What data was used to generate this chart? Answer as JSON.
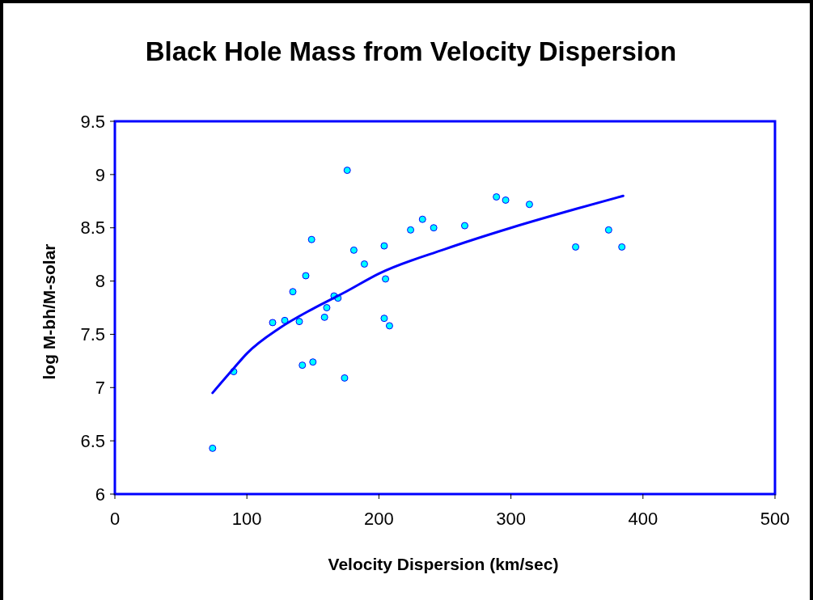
{
  "chart_data": {
    "type": "scatter",
    "title": "Black Hole Mass from Velocity Dispersion",
    "xlabel": "Velocity Dispersion (km/sec)",
    "ylabel": "log M-bh/M-solar",
    "xlim": [
      0,
      500
    ],
    "xticks": [
      0,
      100,
      200,
      300,
      400,
      500
    ],
    "ylim": [
      6,
      9.5
    ],
    "yticks": [
      6,
      6.5,
      7,
      7.5,
      8,
      8.5,
      9,
      9.5
    ],
    "grid": false,
    "series": [
      {
        "color": "#00ffff",
        "marker": "circle",
        "x": [
          74,
          90,
          119.5,
          128.7,
          134.8,
          139.7,
          144.6,
          142,
          149,
          150,
          158.8,
          160.5,
          166,
          169,
          176,
          174,
          181,
          189,
          204,
          205,
          204,
          208,
          224,
          233,
          241.5,
          265,
          289,
          296,
          314,
          349,
          374,
          384
        ],
        "values": [
          6.43,
          7.15,
          7.61,
          7.63,
          7.9,
          7.62,
          8.05,
          7.21,
          8.39,
          7.24,
          7.66,
          7.75,
          7.86,
          7.84,
          9.04,
          7.09,
          8.29,
          8.16,
          8.33,
          8.02,
          7.65,
          7.58,
          8.48,
          8.58,
          8.5,
          8.52,
          8.79,
          8.76,
          8.72,
          8.32,
          8.48,
          8.32
        ]
      },
      {
        "type": "line",
        "color": "#0000ff",
        "line_style": "solid",
        "x": [
          74,
          90,
          100,
          125,
          150,
          175,
          200,
          250,
          300,
          350,
          385
        ],
        "values": [
          6.95,
          7.18,
          7.32,
          7.56,
          7.74,
          7.9,
          8.07,
          8.3,
          8.5,
          8.68,
          8.8
        ]
      }
    ]
  }
}
